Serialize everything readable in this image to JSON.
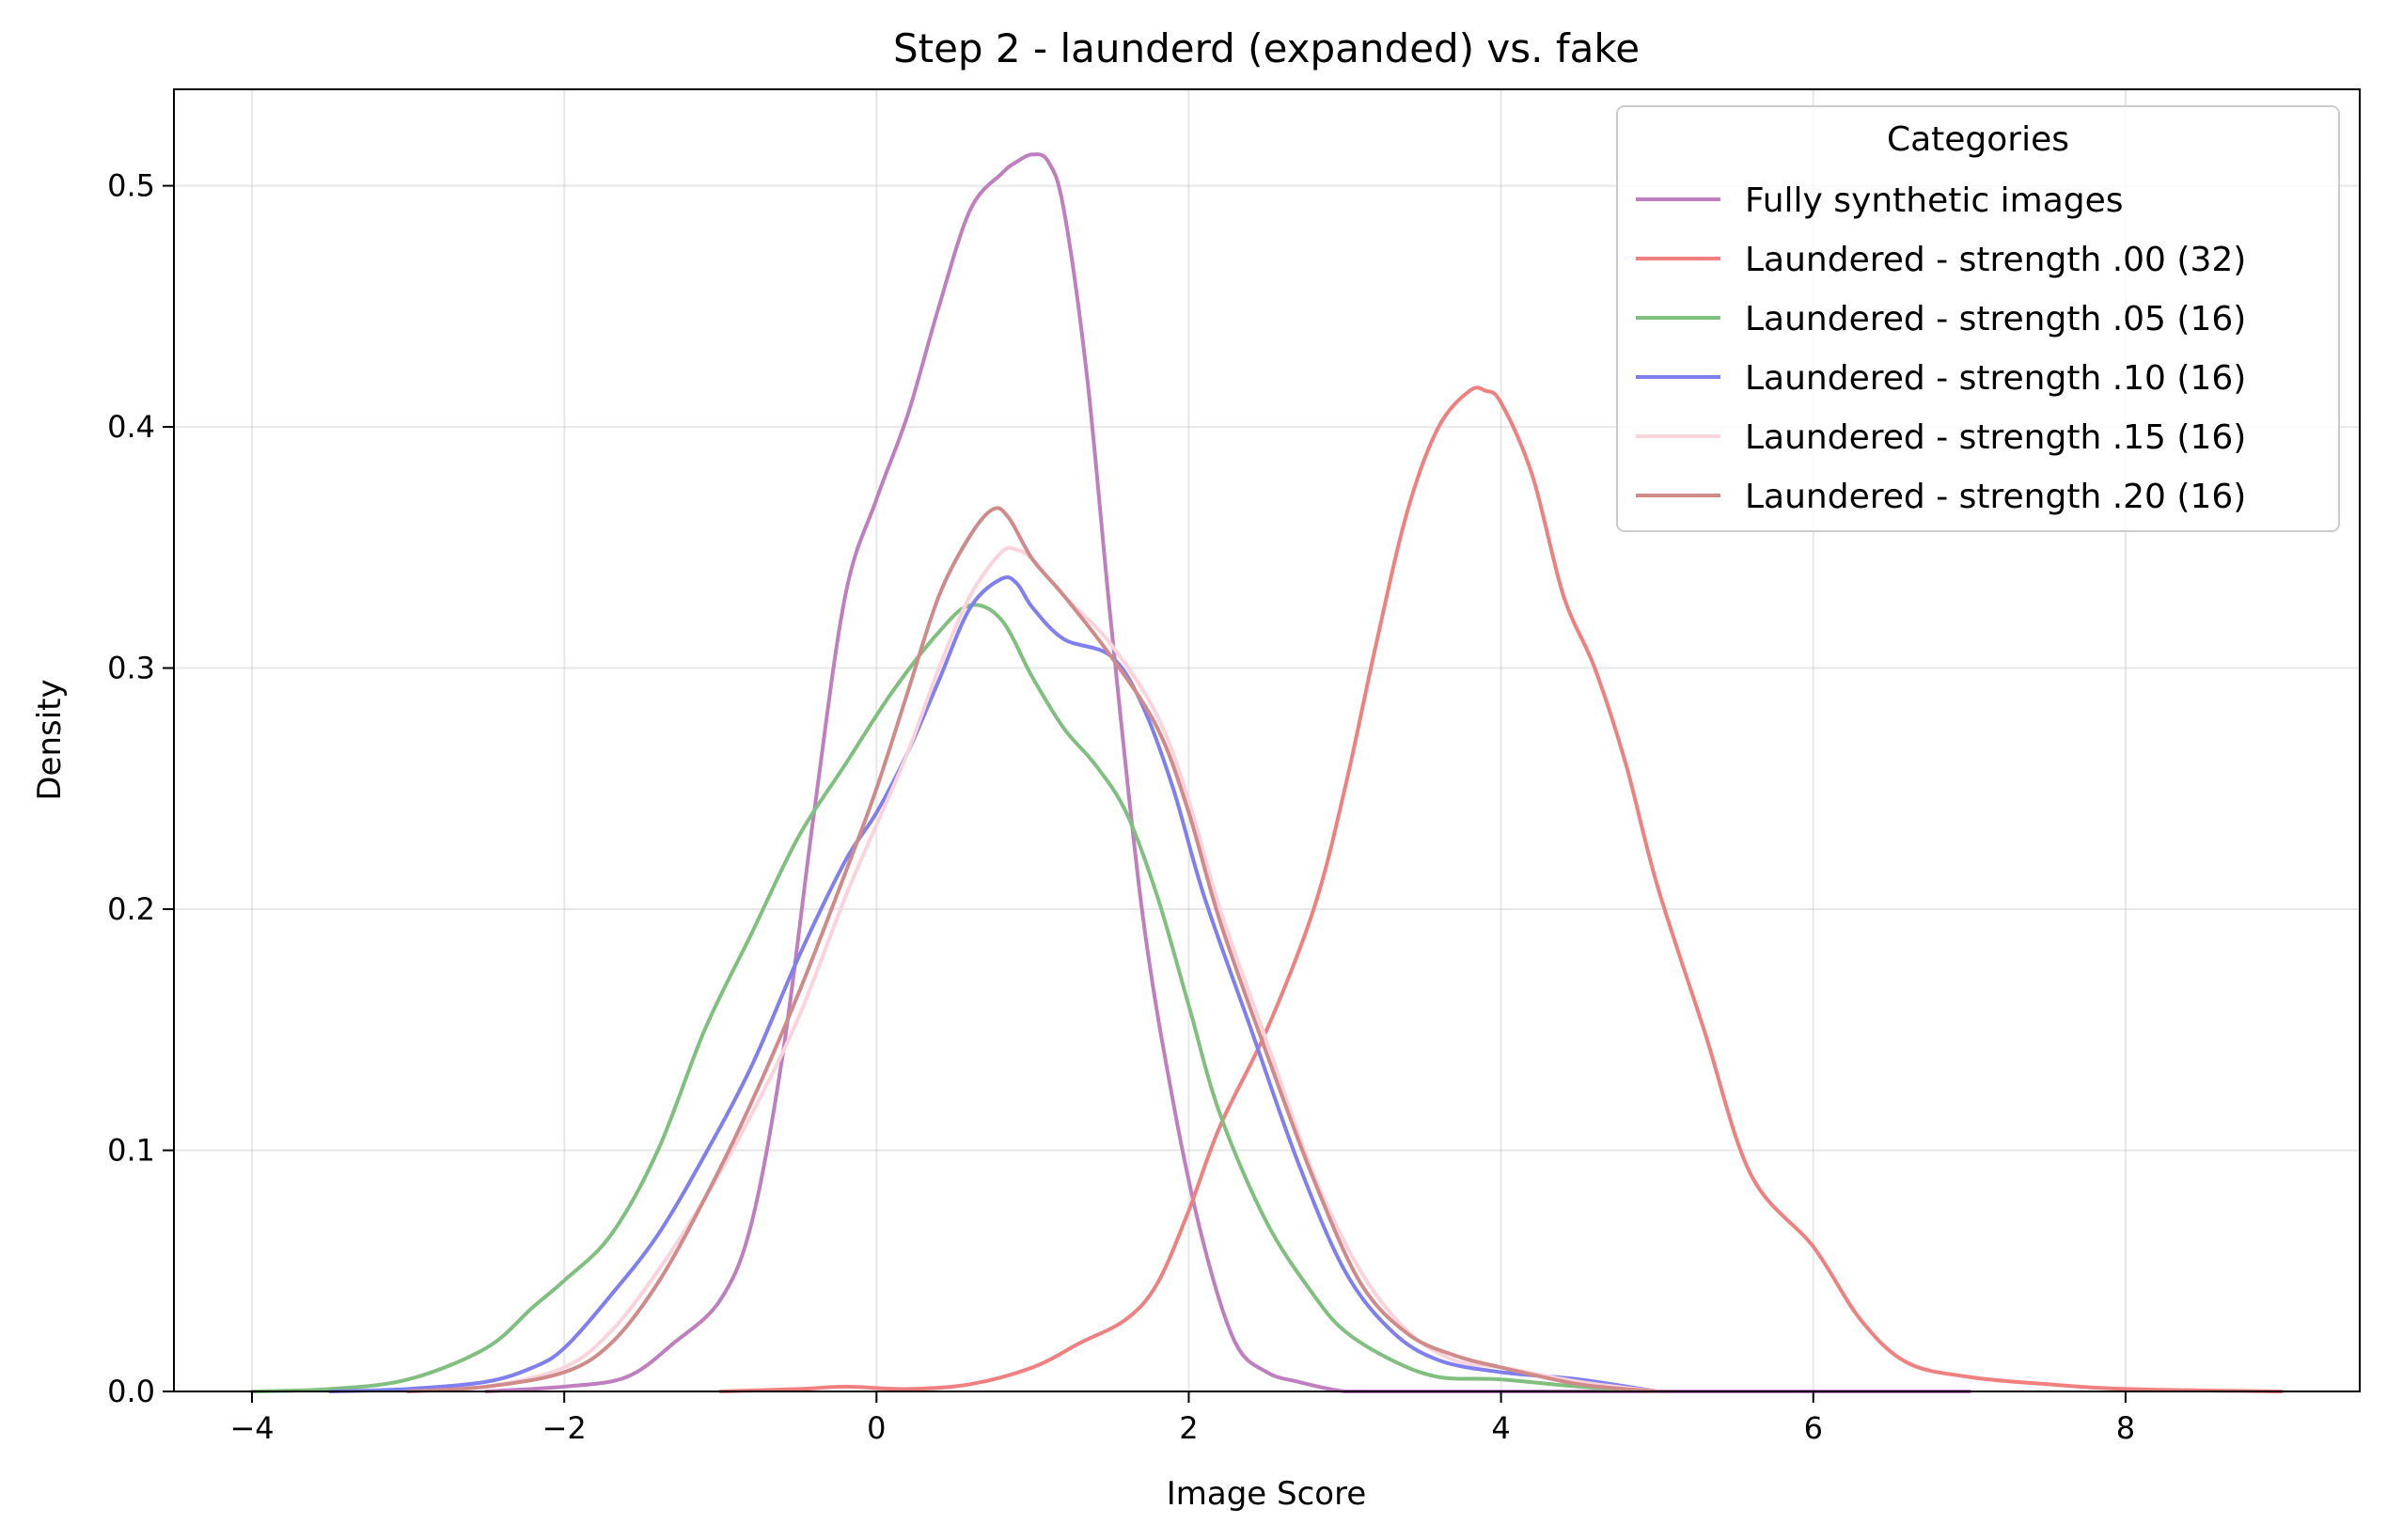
{
  "chart_data": {
    "type": "line",
    "title": "Step 2 - launderd (expanded) vs. fake",
    "xlabel": "Image Score",
    "ylabel": "Density",
    "xlim": [
      -4.5,
      9.5
    ],
    "ylim": [
      0,
      0.54
    ],
    "xticks": [
      -4,
      -2,
      0,
      2,
      4,
      6,
      8
    ],
    "xtick_labels": [
      "−4",
      "−2",
      "0",
      "2",
      "4",
      "6",
      "8"
    ],
    "yticks": [
      0,
      0.1,
      0.2,
      0.3,
      0.4,
      0.5
    ],
    "ytick_labels": [
      "0.0",
      "0.1",
      "0.2",
      "0.3",
      "0.4",
      "0.5"
    ],
    "grid": true,
    "legend": {
      "title": "Categories",
      "placement": "top-right"
    },
    "series": [
      {
        "name": "Fully synthetic images",
        "color": "#bf7fbf",
        "x": [
          -2.5,
          -2.0,
          -1.6,
          -1.3,
          -1.0,
          -0.8,
          -0.6,
          -0.4,
          -0.2,
          0.0,
          0.2,
          0.4,
          0.6,
          0.8,
          0.9,
          1.0,
          1.1,
          1.2,
          1.35,
          1.5,
          1.7,
          1.9,
          2.1,
          2.3,
          2.5,
          2.7,
          3.0,
          3.3,
          3.6,
          4.0,
          5.0,
          7.0
        ],
        "y": [
          0.0,
          0.002,
          0.006,
          0.02,
          0.038,
          0.07,
          0.14,
          0.24,
          0.33,
          0.37,
          0.405,
          0.45,
          0.49,
          0.505,
          0.51,
          0.513,
          0.51,
          0.49,
          0.42,
          0.32,
          0.2,
          0.12,
          0.06,
          0.02,
          0.008,
          0.004,
          0.0,
          0.0,
          0.0,
          0.0,
          0.0,
          0.0
        ]
      },
      {
        "name": "Laundered - strength .00 (32)",
        "color": "#f08080",
        "x": [
          -1.0,
          -0.5,
          -0.2,
          0.2,
          0.6,
          1.0,
          1.3,
          1.6,
          1.8,
          2.0,
          2.2,
          2.5,
          2.8,
          3.0,
          3.2,
          3.4,
          3.6,
          3.8,
          3.9,
          4.0,
          4.2,
          4.4,
          4.6,
          4.8,
          5.0,
          5.3,
          5.6,
          6.0,
          6.3,
          6.6,
          7.0,
          7.5,
          8.0,
          9.0
        ],
        "y": [
          0.0,
          0.001,
          0.002,
          0.001,
          0.003,
          0.01,
          0.02,
          0.03,
          0.045,
          0.075,
          0.11,
          0.15,
          0.2,
          0.25,
          0.31,
          0.365,
          0.4,
          0.415,
          0.415,
          0.41,
          0.38,
          0.33,
          0.3,
          0.26,
          0.21,
          0.15,
          0.09,
          0.06,
          0.03,
          0.012,
          0.006,
          0.003,
          0.001,
          0.0
        ]
      },
      {
        "name": "Laundered - strength .05 (16)",
        "color": "#80bf80",
        "x": [
          -4.0,
          -3.5,
          -3.0,
          -2.5,
          -2.2,
          -2.0,
          -1.7,
          -1.4,
          -1.1,
          -0.8,
          -0.5,
          -0.2,
          0.1,
          0.4,
          0.6,
          0.8,
          1.0,
          1.2,
          1.4,
          1.6,
          1.8,
          2.0,
          2.2,
          2.5,
          2.8,
          3.0,
          3.3,
          3.6,
          4.0,
          4.5,
          5.0
        ],
        "y": [
          0.0,
          0.001,
          0.005,
          0.018,
          0.035,
          0.046,
          0.065,
          0.1,
          0.15,
          0.19,
          0.23,
          0.26,
          0.29,
          0.315,
          0.326,
          0.32,
          0.296,
          0.275,
          0.26,
          0.24,
          0.205,
          0.16,
          0.115,
          0.07,
          0.04,
          0.025,
          0.013,
          0.006,
          0.005,
          0.002,
          0.0
        ]
      },
      {
        "name": "Laundered - strength .10 (16)",
        "color": "#7f7ff0",
        "x": [
          -3.5,
          -3.0,
          -2.5,
          -2.2,
          -2.0,
          -1.7,
          -1.4,
          -1.1,
          -0.8,
          -0.5,
          -0.2,
          0.0,
          0.2,
          0.4,
          0.6,
          0.8,
          0.9,
          1.0,
          1.2,
          1.5,
          1.7,
          1.9,
          2.1,
          2.4,
          2.7,
          3.0,
          3.3,
          3.6,
          4.0,
          4.5,
          5.0
        ],
        "y": [
          0.0,
          0.001,
          0.004,
          0.01,
          0.018,
          0.04,
          0.065,
          0.098,
          0.135,
          0.18,
          0.22,
          0.24,
          0.265,
          0.295,
          0.325,
          0.337,
          0.335,
          0.325,
          0.312,
          0.305,
          0.285,
          0.25,
          0.205,
          0.15,
          0.095,
          0.05,
          0.025,
          0.013,
          0.008,
          0.005,
          0.0
        ]
      },
      {
        "name": "Laundered - strength .15 (16)",
        "color": "#fbd3dc",
        "x": [
          -3.0,
          -2.5,
          -2.0,
          -1.7,
          -1.4,
          -1.1,
          -0.8,
          -0.5,
          -0.2,
          0.0,
          0.2,
          0.4,
          0.6,
          0.8,
          0.9,
          1.0,
          1.2,
          1.5,
          1.8,
          2.0,
          2.2,
          2.5,
          2.8,
          3.1,
          3.4,
          3.7,
          4.0,
          4.5,
          5.0
        ],
        "y": [
          0.0,
          0.002,
          0.01,
          0.025,
          0.05,
          0.08,
          0.115,
          0.155,
          0.205,
          0.235,
          0.265,
          0.3,
          0.33,
          0.348,
          0.349,
          0.345,
          0.33,
          0.31,
          0.28,
          0.245,
          0.2,
          0.145,
          0.09,
          0.05,
          0.025,
          0.013,
          0.01,
          0.004,
          0.0
        ]
      },
      {
        "name": "Laundered - strength .20 (16)",
        "color": "#d08a8a",
        "x": [
          -3.0,
          -2.5,
          -2.0,
          -1.7,
          -1.4,
          -1.1,
          -0.8,
          -0.5,
          -0.2,
          0.0,
          0.2,
          0.4,
          0.6,
          0.75,
          0.85,
          1.0,
          1.2,
          1.5,
          1.8,
          2.0,
          2.2,
          2.5,
          2.8,
          3.1,
          3.4,
          3.7,
          4.0,
          4.5,
          5.0
        ],
        "y": [
          0.0,
          0.002,
          0.008,
          0.02,
          0.045,
          0.08,
          0.12,
          0.165,
          0.215,
          0.25,
          0.29,
          0.33,
          0.355,
          0.366,
          0.362,
          0.345,
          0.33,
          0.305,
          0.275,
          0.24,
          0.195,
          0.14,
          0.088,
          0.045,
          0.024,
          0.015,
          0.01,
          0.003,
          0.0
        ]
      }
    ]
  }
}
